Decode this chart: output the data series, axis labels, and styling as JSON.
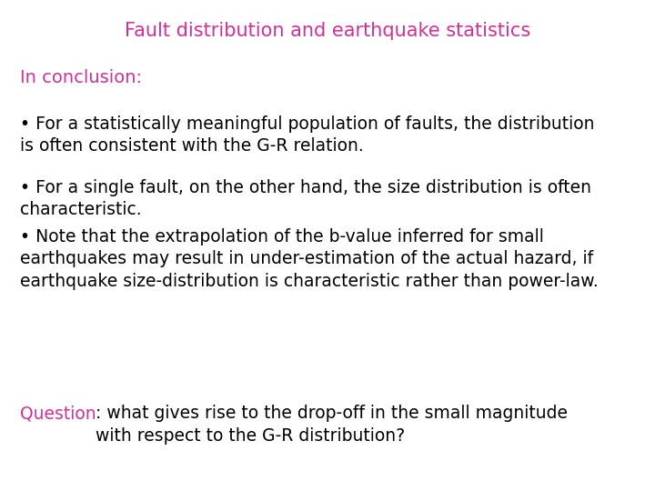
{
  "title": "Fault distribution and earthquake statistics",
  "title_color": "#CC3399",
  "title_fontsize": 15,
  "background_color": "#ffffff",
  "conclusion_label": "In conclusion:",
  "conclusion_color": "#CC3399",
  "conclusion_fontsize": 14,
  "bullet1": "• For a statistically meaningful population of faults, the distribution\nis often consistent with the G-R relation.",
  "bullet2": "• For a single fault, on the other hand, the size distribution is often\ncharacteristic.",
  "bullet3": "• Note that the extrapolation of the b-value inferred for small\nearthquakes may result in under-estimation of the actual hazard, if\nearthquake size-distribution is characteristic rather than power-law.",
  "question_label": "Question",
  "question_label_color": "#CC3399",
  "question_rest": ": what gives rise to the drop-off in the small magnitude\nwith respect to the G-R distribution?",
  "body_color": "#000000",
  "body_fontsize": 13.5,
  "question_fontsize": 13.5,
  "font_family": "DejaVu Sans"
}
